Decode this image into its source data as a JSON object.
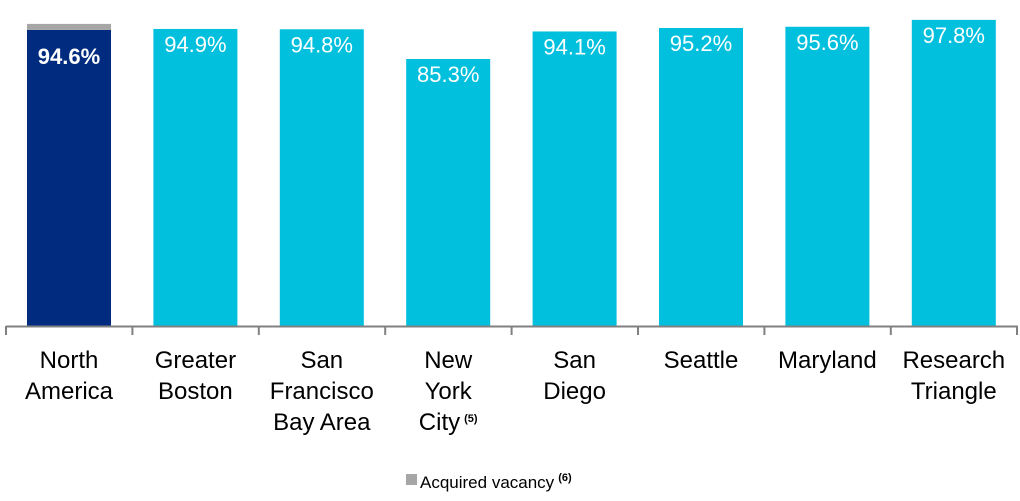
{
  "chart_data": {
    "type": "bar",
    "categories": [
      {
        "lines": [
          "North",
          "America"
        ],
        "note": ""
      },
      {
        "lines": [
          "Greater",
          "Boston"
        ],
        "note": ""
      },
      {
        "lines": [
          "San",
          "Francisco",
          "Bay Area"
        ],
        "note": ""
      },
      {
        "lines": [
          "New",
          "York",
          "City"
        ],
        "note": "(5)"
      },
      {
        "lines": [
          "San",
          "Diego"
        ],
        "note": ""
      },
      {
        "lines": [
          "Seattle"
        ],
        "note": ""
      },
      {
        "lines": [
          "Maryland"
        ],
        "note": ""
      },
      {
        "lines": [
          "Research",
          "Triangle"
        ],
        "note": ""
      }
    ],
    "values": [
      94.6,
      94.9,
      94.8,
      85.3,
      94.1,
      95.2,
      95.6,
      97.8
    ],
    "value_labels": [
      "94.6%",
      "94.9%",
      "94.8%",
      "85.3%",
      "94.1%",
      "95.2%",
      "95.6%",
      "97.8%"
    ],
    "acquired_vacancy": [
      0.5,
      0,
      0,
      0,
      0,
      0,
      0,
      0
    ],
    "highlight_index": 0,
    "ylim": [
      0,
      100
    ],
    "grid": false,
    "legend": {
      "position": "bottom",
      "label": "Acquired vacancy",
      "note": "(6)"
    },
    "colors": {
      "highlight": "#002b7f",
      "bar": "#00c0de",
      "acquired_vacancy": "#a6a6a6",
      "axis": "#808080",
      "value_text": "#ffffff"
    }
  }
}
